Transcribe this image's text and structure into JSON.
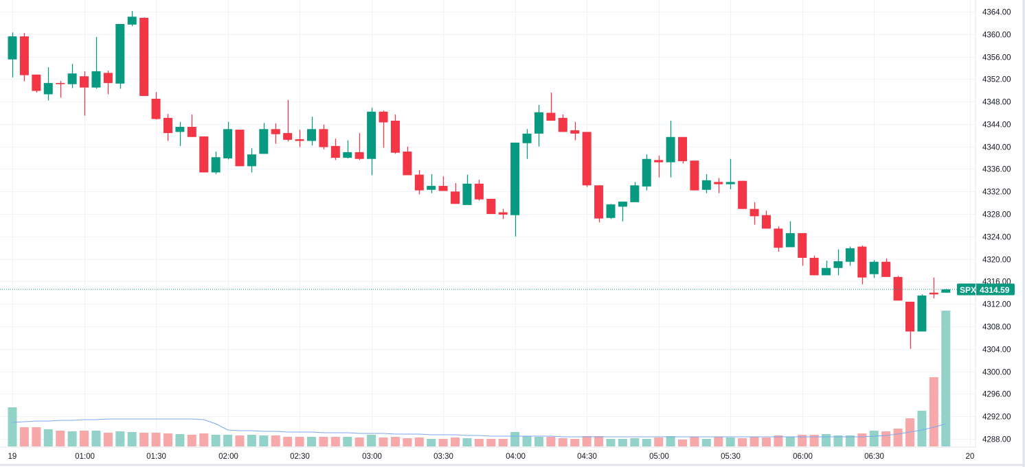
{
  "chart_data": {
    "type": "candlestick",
    "symbol": "SPX",
    "last_price": "4314.59",
    "ylim": [
      4286.53,
      4366.07
    ],
    "y_ticks": [
      "4364.00",
      "4360.00",
      "4356.00",
      "4352.00",
      "4348.00",
      "4344.00",
      "4340.00",
      "4336.00",
      "4332.00",
      "4328.00",
      "4324.00",
      "4320.00",
      "4316.00",
      "4312.00",
      "4308.00",
      "4304.00",
      "4300.00",
      "4296.00",
      "4292.00",
      "4288.00"
    ],
    "x_ticks": [
      {
        "label": "19",
        "index": 0
      },
      {
        "label": "01:00",
        "index": 6
      },
      {
        "label": "01:30",
        "index": 12
      },
      {
        "label": "02:00",
        "index": 18
      },
      {
        "label": "02:30",
        "index": 24
      },
      {
        "label": "03:00",
        "index": 30
      },
      {
        "label": "03:30",
        "index": 36
      },
      {
        "label": "04:00",
        "index": 42
      },
      {
        "label": "04:30",
        "index": 48
      },
      {
        "label": "05:00",
        "index": 54
      },
      {
        "label": "05:30",
        "index": 60
      },
      {
        "label": "06:00",
        "index": 66
      },
      {
        "label": "06:30",
        "index": 72
      },
      {
        "label": "20",
        "index": 80
      }
    ],
    "ohlc": [
      [
        4355.5,
        4360.3,
        4352.3,
        4359.6
      ],
      [
        4359.6,
        4360.2,
        4351.6,
        4352.7
      ],
      [
        4352.8,
        4352.8,
        4349.6,
        4349.9
      ],
      [
        4349.3,
        4354.1,
        4348.2,
        4351.3
      ],
      [
        4351.3,
        4351.7,
        4348.7,
        4351.1
      ],
      [
        4351.1,
        4354.7,
        4350.4,
        4353.0
      ],
      [
        4352.5,
        4353.4,
        4345.5,
        4350.5
      ],
      [
        4350.5,
        4359.5,
        4350.3,
        4353.4
      ],
      [
        4353.1,
        4353.5,
        4349.3,
        4351.3
      ],
      [
        4351.2,
        4361.8,
        4350.3,
        4361.8
      ],
      [
        4361.7,
        4364.1,
        4361.4,
        4363.1
      ],
      [
        4362.9,
        4363.0,
        4349.0,
        4349.0
      ],
      [
        4348.5,
        4349.7,
        4344.8,
        4344.9
      ],
      [
        4345.1,
        4345.8,
        4341.0,
        4342.4
      ],
      [
        4342.6,
        4344.4,
        4340.1,
        4343.5
      ],
      [
        4343.5,
        4345.7,
        4341.7,
        4341.7
      ],
      [
        4341.8,
        4341.8,
        4335.4,
        4335.4
      ],
      [
        4335.4,
        4339.1,
        4335.1,
        4338.1
      ],
      [
        4337.9,
        4344.4,
        4337.7,
        4343.1
      ],
      [
        4343.0,
        4343.0,
        4336.5,
        4336.5
      ],
      [
        4336.5,
        4339.7,
        4335.4,
        4338.6
      ],
      [
        4338.7,
        4344.2,
        4338.7,
        4343.1
      ],
      [
        4343.1,
        4344.1,
        4340.5,
        4342.2
      ],
      [
        4342.4,
        4348.3,
        4340.9,
        4341.2
      ],
      [
        4341.3,
        4343.0,
        4339.9,
        4341.0
      ],
      [
        4341.0,
        4345.3,
        4340.2,
        4343.1
      ],
      [
        4343.1,
        4343.9,
        4339.5,
        4339.9
      ],
      [
        4340.1,
        4341.4,
        4337.6,
        4338.0
      ],
      [
        4338.0,
        4341.1,
        4337.9,
        4339.0
      ],
      [
        4339.0,
        4342.4,
        4337.6,
        4337.8
      ],
      [
        4337.8,
        4346.9,
        4334.9,
        4346.2
      ],
      [
        4346.2,
        4346.4,
        4339.8,
        4344.3
      ],
      [
        4344.6,
        4345.7,
        4338.7,
        4338.9
      ],
      [
        4339.1,
        4340.0,
        4334.9,
        4334.9
      ],
      [
        4335.0,
        4335.8,
        4331.5,
        4332.2
      ],
      [
        4332.3,
        4335.1,
        4331.7,
        4333.0
      ],
      [
        4333.0,
        4334.7,
        4332.1,
        4332.1
      ],
      [
        4332.0,
        4333.5,
        4329.8,
        4329.8
      ],
      [
        4329.6,
        4335.0,
        4329.6,
        4333.4
      ],
      [
        4333.4,
        4334.1,
        4330.4,
        4330.6
      ],
      [
        4330.7,
        4330.7,
        4328.0,
        4328.0
      ],
      [
        4328.3,
        4328.9,
        4327.1,
        4327.9
      ],
      [
        4327.8,
        4340.7,
        4324.0,
        4340.7
      ],
      [
        4340.6,
        4343.1,
        4337.8,
        4342.3
      ],
      [
        4342.3,
        4347.4,
        4340.0,
        4346.1
      ],
      [
        4346.0,
        4349.6,
        4344.6,
        4344.6
      ],
      [
        4345.1,
        4345.7,
        4342.6,
        4342.6
      ],
      [
        4342.9,
        4344.4,
        4341.1,
        4342.3
      ],
      [
        4342.6,
        4342.6,
        4332.8,
        4333.1
      ],
      [
        4333.1,
        4333.1,
        4326.5,
        4327.2
      ],
      [
        4327.3,
        4329.8,
        4327.1,
        4329.7
      ],
      [
        4329.3,
        4330.2,
        4326.7,
        4330.2
      ],
      [
        4330.1,
        4333.7,
        4330.1,
        4333.1
      ],
      [
        4332.9,
        4338.6,
        4332.2,
        4337.8
      ],
      [
        4337.6,
        4338.4,
        4334.5,
        4337.2
      ],
      [
        4337.2,
        4344.6,
        4334.5,
        4341.7
      ],
      [
        4341.7,
        4341.7,
        4337.0,
        4337.4
      ],
      [
        4337.5,
        4337.5,
        4332.2,
        4332.2
      ],
      [
        4332.3,
        4335.1,
        4331.7,
        4334.0
      ],
      [
        4333.7,
        4334.4,
        4331.7,
        4333.3
      ],
      [
        4333.3,
        4337.8,
        4332.4,
        4333.7
      ],
      [
        4333.9,
        4333.9,
        4328.9,
        4328.9
      ],
      [
        4328.9,
        4330.1,
        4326.1,
        4327.6
      ],
      [
        4327.8,
        4328.6,
        4325.4,
        4325.4
      ],
      [
        4325.4,
        4325.8,
        4321.3,
        4322.0
      ],
      [
        4322.1,
        4326.7,
        4322.1,
        4324.6
      ],
      [
        4324.6,
        4324.6,
        4318.8,
        4320.2
      ],
      [
        4320.2,
        4320.6,
        4317.1,
        4317.1
      ],
      [
        4317.1,
        4319.7,
        4317.1,
        4318.4
      ],
      [
        4318.4,
        4321.7,
        4317.1,
        4319.6
      ],
      [
        4319.5,
        4322.2,
        4318.8,
        4321.9
      ],
      [
        4322.2,
        4322.4,
        4315.5,
        4316.7
      ],
      [
        4317.3,
        4319.8,
        4316.6,
        4319.5
      ],
      [
        4319.5,
        4320.1,
        4316.8,
        4316.8
      ],
      [
        4316.8,
        4317.0,
        4312.6,
        4312.6
      ],
      [
        4312.4,
        4312.4,
        4304.0,
        4307.1
      ],
      [
        4307.1,
        4313.7,
        4307.1,
        4313.5
      ],
      [
        4314.0,
        4316.7,
        4313.0,
        4313.7
      ],
      [
        4314.0,
        4314.7,
        4314.0,
        4314.59
      ]
    ],
    "volume_relative": [
      57,
      28,
      28,
      25,
      23,
      22,
      23,
      23,
      20,
      22,
      21,
      20,
      20,
      19,
      18,
      17,
      19,
      17,
      17,
      16,
      17,
      16,
      16,
      14,
      14,
      14,
      14,
      14,
      14,
      13,
      17,
      13,
      14,
      12,
      13,
      11,
      11,
      13,
      12,
      11,
      11,
      11,
      21,
      15,
      14,
      14,
      12,
      11,
      15,
      15,
      11,
      11,
      12,
      11,
      13,
      15,
      10,
      14,
      11,
      14,
      13,
      12,
      14,
      13,
      16,
      14,
      17,
      17,
      18,
      16,
      16,
      19,
      23,
      22,
      26,
      41,
      52,
      101,
      198
    ],
    "volume_ma_relative": [
      35,
      36,
      37,
      37,
      38,
      38,
      39,
      39,
      40,
      40,
      40,
      40,
      40,
      40,
      40,
      40,
      39,
      33,
      24,
      23,
      23,
      22,
      22,
      21,
      21,
      21,
      20,
      20,
      20,
      19,
      19,
      19,
      18,
      18,
      18,
      17,
      17,
      17,
      16,
      16,
      15,
      15,
      15,
      15,
      15,
      15,
      14,
      14,
      14,
      14,
      14,
      14,
      14,
      14,
      14,
      14,
      14,
      14,
      14,
      14,
      14,
      14,
      14,
      14,
      14,
      14,
      14,
      14,
      14,
      14,
      14,
      14,
      15,
      16,
      18,
      21,
      24,
      28,
      33
    ],
    "colors": {
      "up": "#089981",
      "down": "#f23645",
      "up_volume": "#92d2c9",
      "down_volume": "#f7a8a8",
      "volume_ma": "#7aa6f0",
      "grid": "#f0f3fa",
      "text": "#131722"
    }
  }
}
